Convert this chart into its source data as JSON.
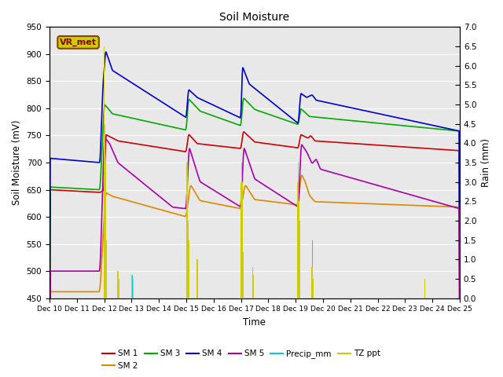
{
  "title": "Soil Moisture",
  "xlabel": "Time",
  "ylabel_left": "Soil Moisture (mV)",
  "ylabel_right": "Rain (mm)",
  "ylim_left": [
    450,
    950
  ],
  "ylim_right": [
    0.0,
    7.0
  ],
  "yticks_left": [
    450,
    500,
    550,
    600,
    650,
    700,
    750,
    800,
    850,
    900,
    950
  ],
  "yticks_right": [
    0.0,
    0.5,
    1.0,
    1.5,
    2.0,
    2.5,
    3.0,
    3.5,
    4.0,
    4.5,
    5.0,
    5.5,
    6.0,
    6.5,
    7.0
  ],
  "xtick_labels": [
    "Dec 10",
    "Dec 11",
    "Dec 12",
    "Dec 13",
    "Dec 14",
    "Dec 15",
    "Dec 16",
    "Dec 17",
    "Dec 18",
    "Dec 19",
    "Dec 20",
    "Dec 21",
    "Dec 22",
    "Dec 23",
    "Dec 24",
    "Dec 25"
  ],
  "colors": {
    "SM1": "#cc0000",
    "SM2": "#dd8800",
    "SM3": "#00aa00",
    "SM4": "#0000cc",
    "SM5": "#aa00aa",
    "Precip": "#00cccc",
    "TZ": "#cccc00"
  },
  "background_color": "#e8e8e8",
  "grid_color": "#ffffff",
  "annotation_text": "VR_met",
  "annotation_fg": "#880000",
  "annotation_bg": "#cccc00",
  "annotation_border": "#884400"
}
